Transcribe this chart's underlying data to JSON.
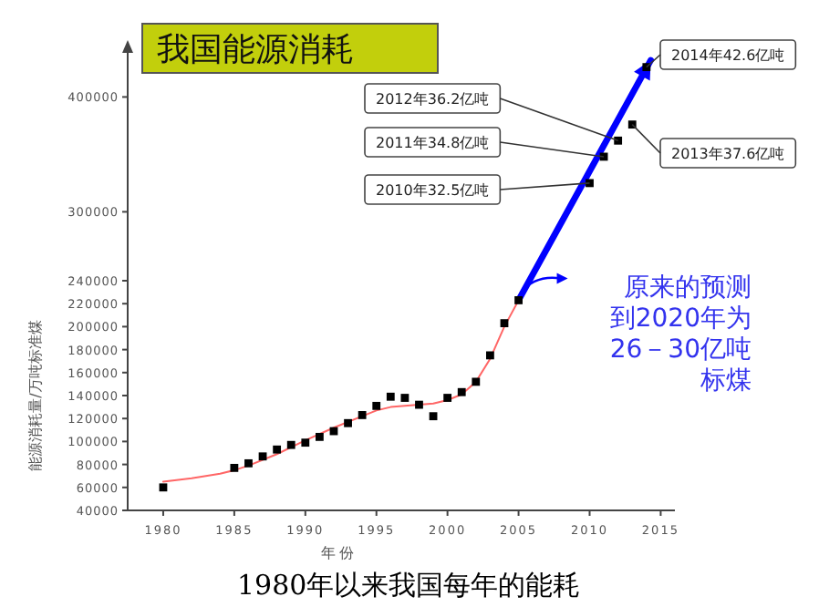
{
  "chart_data": {
    "type": "scatter",
    "title": "我国能源消耗",
    "xlabel": "年份",
    "ylabel": "能源消耗量/万吨标准煤",
    "xlim": [
      1977.5,
      2016
    ],
    "xticks": [
      1980,
      1985,
      1990,
      1995,
      2000,
      2005,
      2010,
      2015
    ],
    "ylim": [
      40000,
      440000
    ],
    "yticks": [
      40000,
      60000,
      80000,
      100000,
      120000,
      140000,
      160000,
      180000,
      200000,
      220000,
      240000,
      300000,
      400000
    ],
    "grid": false,
    "series": [
      {
        "marker": "square",
        "color": "#000000",
        "x": [
          1980,
          1985,
          1986,
          1987,
          1988,
          1989,
          1990,
          1991,
          1992,
          1993,
          1994,
          1995,
          1996,
          1997,
          1998,
          1999,
          2000,
          2001,
          2002,
          2003,
          2004,
          2005,
          2010,
          2011,
          2012,
          2013,
          2014
        ],
        "values": [
          60000,
          77000,
          81000,
          87000,
          93000,
          97000,
          99000,
          104000,
          109000,
          116000,
          123000,
          131000,
          139000,
          138000,
          132000,
          122000,
          138000,
          143000,
          152000,
          175000,
          203000,
          223000,
          325000,
          348000,
          362000,
          376000,
          426000
        ]
      },
      {
        "type": "line",
        "marker": "none",
        "color": "#ff6666",
        "x": [
          1980,
          1982,
          1984,
          1985,
          1986,
          1988,
          1990,
          1992,
          1994,
          1995,
          1996,
          1997,
          1998,
          1999,
          2000,
          2001,
          2002,
          2003,
          2004,
          2005
        ],
        "values": [
          65000,
          68000,
          72000,
          75000,
          79000,
          89000,
          101000,
          112000,
          122000,
          127000,
          130000,
          131000,
          132000,
          133000,
          136000,
          141000,
          152000,
          172000,
          200000,
          223000
        ]
      },
      {
        "type": "line",
        "color": "#0000ff",
        "x": [
          2005,
          2014.3
        ],
        "values": [
          223000,
          432000
        ]
      }
    ],
    "annotations": [
      {
        "text": "2010年32.5亿吨",
        "x": 2010,
        "y": 325000
      },
      {
        "text": "2011年34.8亿吨",
        "x": 2011,
        "y": 348000
      },
      {
        "text": "2012年36.2亿吨",
        "x": 2012,
        "y": 362000
      },
      {
        "text": "2013年37.6亿吨",
        "x": 2013,
        "y": 376000
      },
      {
        "text": "2014年42.6亿吨",
        "x": 2014,
        "y": 426000
      },
      "原来的预测到2020年为26－30亿吨标煤",
      "1980年以来我国每年的能耗"
    ]
  }
}
